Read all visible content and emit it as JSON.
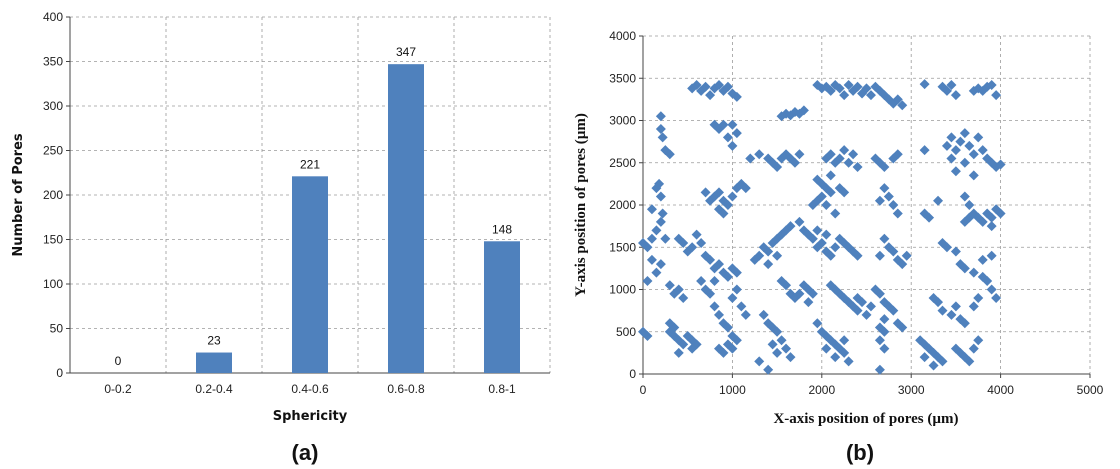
{
  "chart_data": [
    {
      "type": "bar",
      "panel_label": "(a)",
      "title": "",
      "xlabel": "Sphericity",
      "ylabel": "Number of Pores",
      "categories": [
        "0-0.2",
        "0.2-0.4",
        "0.4-0.6",
        "0.6-0.8",
        "0.8-1"
      ],
      "values": [
        0,
        23,
        221,
        347,
        148
      ],
      "data_labels": [
        "0",
        "23",
        "221",
        "347",
        "148"
      ],
      "ylim": [
        0,
        400
      ],
      "yticks": [
        0,
        50,
        100,
        150,
        200,
        250,
        300,
        350,
        400
      ],
      "grid": true,
      "bar_color": "#4f81bd"
    },
    {
      "type": "scatter",
      "panel_label": "(b)",
      "title": "",
      "xlabel": "X-axis position of pores (µm)",
      "ylabel": "Y-axis position of pores (µm)",
      "xlim": [
        0,
        5000
      ],
      "ylim": [
        0,
        4000
      ],
      "xticks": [
        0,
        1000,
        2000,
        3000,
        4000,
        5000
      ],
      "yticks": [
        0,
        500,
        1000,
        1500,
        2000,
        2500,
        3000,
        3500,
        4000
      ],
      "grid": true,
      "marker": "diamond",
      "marker_color": "#4f81bd",
      "points": [
        [
          550,
          3380
        ],
        [
          600,
          3420
        ],
        [
          650,
          3350
        ],
        [
          700,
          3400
        ],
        [
          750,
          3300
        ],
        [
          800,
          3380
        ],
        [
          850,
          3420
        ],
        [
          900,
          3350
        ],
        [
          950,
          3400
        ],
        [
          1000,
          3320
        ],
        [
          1050,
          3280
        ],
        [
          1550,
          3050
        ],
        [
          1600,
          3080
        ],
        [
          1650,
          3060
        ],
        [
          1700,
          3100
        ],
        [
          1750,
          3080
        ],
        [
          1800,
          3120
        ],
        [
          1950,
          3420
        ],
        [
          2000,
          3380
        ],
        [
          2050,
          3400
        ],
        [
          2100,
          3350
        ],
        [
          2150,
          3420
        ],
        [
          2200,
          3380
        ],
        [
          2250,
          3300
        ],
        [
          2300,
          3420
        ],
        [
          2350,
          3350
        ],
        [
          2400,
          3400
        ],
        [
          2450,
          3320
        ],
        [
          2500,
          3380
        ],
        [
          2550,
          3300
        ],
        [
          2600,
          3400
        ],
        [
          2650,
          3350
        ],
        [
          2700,
          3300
        ],
        [
          2750,
          3250
        ],
        [
          2800,
          3200
        ],
        [
          2850,
          3250
        ],
        [
          2900,
          3180
        ],
        [
          3150,
          3430
        ],
        [
          3350,
          3400
        ],
        [
          3400,
          3350
        ],
        [
          3450,
          3420
        ],
        [
          3500,
          3300
        ],
        [
          3700,
          3350
        ],
        [
          3750,
          3380
        ],
        [
          3800,
          3350
        ],
        [
          3850,
          3400
        ],
        [
          3900,
          3420
        ],
        [
          3950,
          3300
        ],
        [
          200,
          3050
        ],
        [
          200,
          2900
        ],
        [
          220,
          2800
        ],
        [
          250,
          2650
        ],
        [
          300,
          2600
        ],
        [
          800,
          2950
        ],
        [
          850,
          2900
        ],
        [
          900,
          2950
        ],
        [
          950,
          2800
        ],
        [
          1000,
          2950
        ],
        [
          1050,
          2850
        ],
        [
          1000,
          2700
        ],
        [
          1200,
          2550
        ],
        [
          1300,
          2600
        ],
        [
          1400,
          2550
        ],
        [
          1450,
          2500
        ],
        [
          1500,
          2450
        ],
        [
          1550,
          2550
        ],
        [
          1600,
          2600
        ],
        [
          1650,
          2550
        ],
        [
          1700,
          2500
        ],
        [
          1750,
          2600
        ],
        [
          2050,
          2550
        ],
        [
          2100,
          2600
        ],
        [
          2150,
          2500
        ],
        [
          2200,
          2550
        ],
        [
          2250,
          2650
        ],
        [
          2300,
          2500
        ],
        [
          2350,
          2600
        ],
        [
          2400,
          2450
        ],
        [
          2600,
          2550
        ],
        [
          2650,
          2500
        ],
        [
          2700,
          2450
        ],
        [
          2800,
          2550
        ],
        [
          2850,
          2600
        ],
        [
          3150,
          2650
        ],
        [
          3400,
          2700
        ],
        [
          3450,
          2800
        ],
        [
          3500,
          2650
        ],
        [
          3550,
          2750
        ],
        [
          3600,
          2850
        ],
        [
          3650,
          2700
        ],
        [
          3700,
          2600
        ],
        [
          3750,
          2800
        ],
        [
          3800,
          2650
        ],
        [
          3850,
          2550
        ],
        [
          3900,
          2500
        ],
        [
          3950,
          2450
        ],
        [
          4000,
          2480
        ],
        [
          3450,
          2550
        ],
        [
          3500,
          2400
        ],
        [
          3600,
          2500
        ],
        [
          3700,
          2350
        ],
        [
          150,
          2200
        ],
        [
          200,
          2100
        ],
        [
          180,
          2250
        ],
        [
          100,
          1950
        ],
        [
          200,
          1800
        ],
        [
          150,
          1700
        ],
        [
          250,
          1600
        ],
        [
          220,
          1900
        ],
        [
          700,
          2150
        ],
        [
          750,
          2050
        ],
        [
          800,
          2100
        ],
        [
          850,
          1950
        ],
        [
          900,
          2050
        ],
        [
          950,
          2000
        ],
        [
          1000,
          2100
        ],
        [
          1050,
          2200
        ],
        [
          1100,
          2250
        ],
        [
          1150,
          2200
        ],
        [
          850,
          2150
        ],
        [
          900,
          1900
        ],
        [
          1950,
          2300
        ],
        [
          2000,
          2250
        ],
        [
          2050,
          2200
        ],
        [
          2100,
          2150
        ],
        [
          2000,
          2100
        ],
        [
          1950,
          2050
        ],
        [
          2050,
          2000
        ],
        [
          2150,
          1900
        ],
        [
          1900,
          2000
        ],
        [
          2100,
          2350
        ],
        [
          2200,
          2200
        ],
        [
          2250,
          2150
        ],
        [
          2700,
          2200
        ],
        [
          2750,
          2100
        ],
        [
          2800,
          2000
        ],
        [
          2650,
          2050
        ],
        [
          2850,
          1900
        ],
        [
          3150,
          1900
        ],
        [
          3200,
          1850
        ],
        [
          3300,
          2050
        ],
        [
          3600,
          2100
        ],
        [
          3650,
          2000
        ],
        [
          3700,
          1900
        ],
        [
          3750,
          1850
        ],
        [
          3800,
          1800
        ],
        [
          3850,
          1900
        ],
        [
          3900,
          1850
        ],
        [
          3950,
          1950
        ],
        [
          4000,
          1900
        ],
        [
          3600,
          1800
        ],
        [
          3650,
          1850
        ],
        [
          3900,
          1750
        ],
        [
          0,
          1550
        ],
        [
          50,
          1500
        ],
        [
          100,
          1600
        ],
        [
          50,
          1100
        ],
        [
          150,
          1200
        ],
        [
          200,
          1300
        ],
        [
          100,
          1350
        ],
        [
          400,
          1600
        ],
        [
          450,
          1550
        ],
        [
          500,
          1450
        ],
        [
          550,
          1500
        ],
        [
          600,
          1650
        ],
        [
          650,
          1550
        ],
        [
          700,
          1400
        ],
        [
          750,
          1350
        ],
        [
          800,
          1250
        ],
        [
          850,
          1300
        ],
        [
          900,
          1200
        ],
        [
          650,
          1100
        ],
        [
          700,
          1000
        ],
        [
          750,
          950
        ],
        [
          800,
          1100
        ],
        [
          950,
          1150
        ],
        [
          1000,
          1250
        ],
        [
          1050,
          1200
        ],
        [
          1250,
          1350
        ],
        [
          1300,
          1400
        ],
        [
          1350,
          1500
        ],
        [
          1400,
          1450
        ],
        [
          1450,
          1550
        ],
        [
          1500,
          1600
        ],
        [
          1550,
          1650
        ],
        [
          1600,
          1700
        ],
        [
          1650,
          1750
        ],
        [
          1500,
          1400
        ],
        [
          1400,
          1300
        ],
        [
          1750,
          1800
        ],
        [
          1800,
          1700
        ],
        [
          1850,
          1650
        ],
        [
          1900,
          1600
        ],
        [
          1950,
          1500
        ],
        [
          2000,
          1550
        ],
        [
          2050,
          1450
        ],
        [
          2100,
          1400
        ],
        [
          2150,
          1500
        ],
        [
          2200,
          1600
        ],
        [
          2250,
          1550
        ],
        [
          2300,
          1500
        ],
        [
          2350,
          1450
        ],
        [
          2400,
          1400
        ],
        [
          1950,
          1700
        ],
        [
          2050,
          1650
        ],
        [
          2700,
          1600
        ],
        [
          2750,
          1500
        ],
        [
          2650,
          1400
        ],
        [
          2800,
          1450
        ],
        [
          2850,
          1350
        ],
        [
          2900,
          1300
        ],
        [
          2950,
          1400
        ],
        [
          3350,
          1550
        ],
        [
          3400,
          1500
        ],
        [
          3500,
          1450
        ],
        [
          3550,
          1300
        ],
        [
          3600,
          1250
        ],
        [
          3700,
          1200
        ],
        [
          3800,
          1150
        ],
        [
          3850,
          1100
        ],
        [
          3900,
          1000
        ],
        [
          3950,
          900
        ],
        [
          3900,
          1400
        ],
        [
          3800,
          1350
        ],
        [
          300,
          1050
        ],
        [
          350,
          950
        ],
        [
          400,
          1000
        ],
        [
          450,
          900
        ],
        [
          1050,
          1000
        ],
        [
          1000,
          900
        ],
        [
          1100,
          800
        ],
        [
          1150,
          700
        ],
        [
          1550,
          1100
        ],
        [
          1600,
          1050
        ],
        [
          1650,
          950
        ],
        [
          1700,
          900
        ],
        [
          1750,
          950
        ],
        [
          1800,
          1050
        ],
        [
          1850,
          1000
        ],
        [
          1900,
          950
        ],
        [
          1850,
          850
        ],
        [
          2100,
          1050
        ],
        [
          2150,
          1000
        ],
        [
          2200,
          950
        ],
        [
          2250,
          900
        ],
        [
          2300,
          850
        ],
        [
          2350,
          800
        ],
        [
          2400,
          900
        ],
        [
          2450,
          850
        ],
        [
          2400,
          750
        ],
        [
          2500,
          700
        ],
        [
          2550,
          800
        ],
        [
          2600,
          1000
        ],
        [
          2650,
          950
        ],
        [
          2700,
          850
        ],
        [
          2750,
          800
        ],
        [
          2800,
          750
        ],
        [
          2700,
          650
        ],
        [
          2650,
          550
        ],
        [
          2700,
          500
        ],
        [
          2850,
          600
        ],
        [
          2900,
          550
        ],
        [
          3250,
          900
        ],
        [
          3300,
          850
        ],
        [
          3350,
          750
        ],
        [
          3450,
          700
        ],
        [
          3500,
          800
        ],
        [
          3550,
          650
        ],
        [
          3600,
          600
        ],
        [
          3700,
          800
        ],
        [
          3750,
          900
        ],
        [
          0,
          500
        ],
        [
          50,
          450
        ],
        [
          300,
          500
        ],
        [
          350,
          450
        ],
        [
          400,
          400
        ],
        [
          450,
          350
        ],
        [
          500,
          450
        ],
        [
          550,
          400
        ],
        [
          600,
          350
        ],
        [
          550,
          300
        ],
        [
          400,
          250
        ],
        [
          350,
          550
        ],
        [
          300,
          600
        ],
        [
          800,
          800
        ],
        [
          850,
          700
        ],
        [
          900,
          600
        ],
        [
          950,
          550
        ],
        [
          1000,
          450
        ],
        [
          1050,
          400
        ],
        [
          950,
          350
        ],
        [
          900,
          250
        ],
        [
          850,
          300
        ],
        [
          1000,
          300
        ],
        [
          1350,
          700
        ],
        [
          1400,
          600
        ],
        [
          1450,
          550
        ],
        [
          1500,
          500
        ],
        [
          1550,
          400
        ],
        [
          1600,
          300
        ],
        [
          1650,
          200
        ],
        [
          1450,
          350
        ],
        [
          1500,
          250
        ],
        [
          1300,
          150
        ],
        [
          1400,
          50
        ],
        [
          1950,
          600
        ],
        [
          2000,
          500
        ],
        [
          2050,
          450
        ],
        [
          2100,
          400
        ],
        [
          2150,
          350
        ],
        [
          2200,
          300
        ],
        [
          2250,
          250
        ],
        [
          2300,
          150
        ],
        [
          2150,
          200
        ],
        [
          2050,
          300
        ],
        [
          2250,
          400
        ],
        [
          2650,
          400
        ],
        [
          2700,
          300
        ],
        [
          2650,
          50
        ],
        [
          3100,
          400
        ],
        [
          3150,
          350
        ],
        [
          3200,
          300
        ],
        [
          3250,
          250
        ],
        [
          3300,
          200
        ],
        [
          3350,
          150
        ],
        [
          3250,
          100
        ],
        [
          3150,
          200
        ],
        [
          3500,
          300
        ],
        [
          3550,
          250
        ],
        [
          3600,
          200
        ],
        [
          3650,
          150
        ],
        [
          3700,
          300
        ],
        [
          3750,
          400
        ]
      ]
    }
  ]
}
